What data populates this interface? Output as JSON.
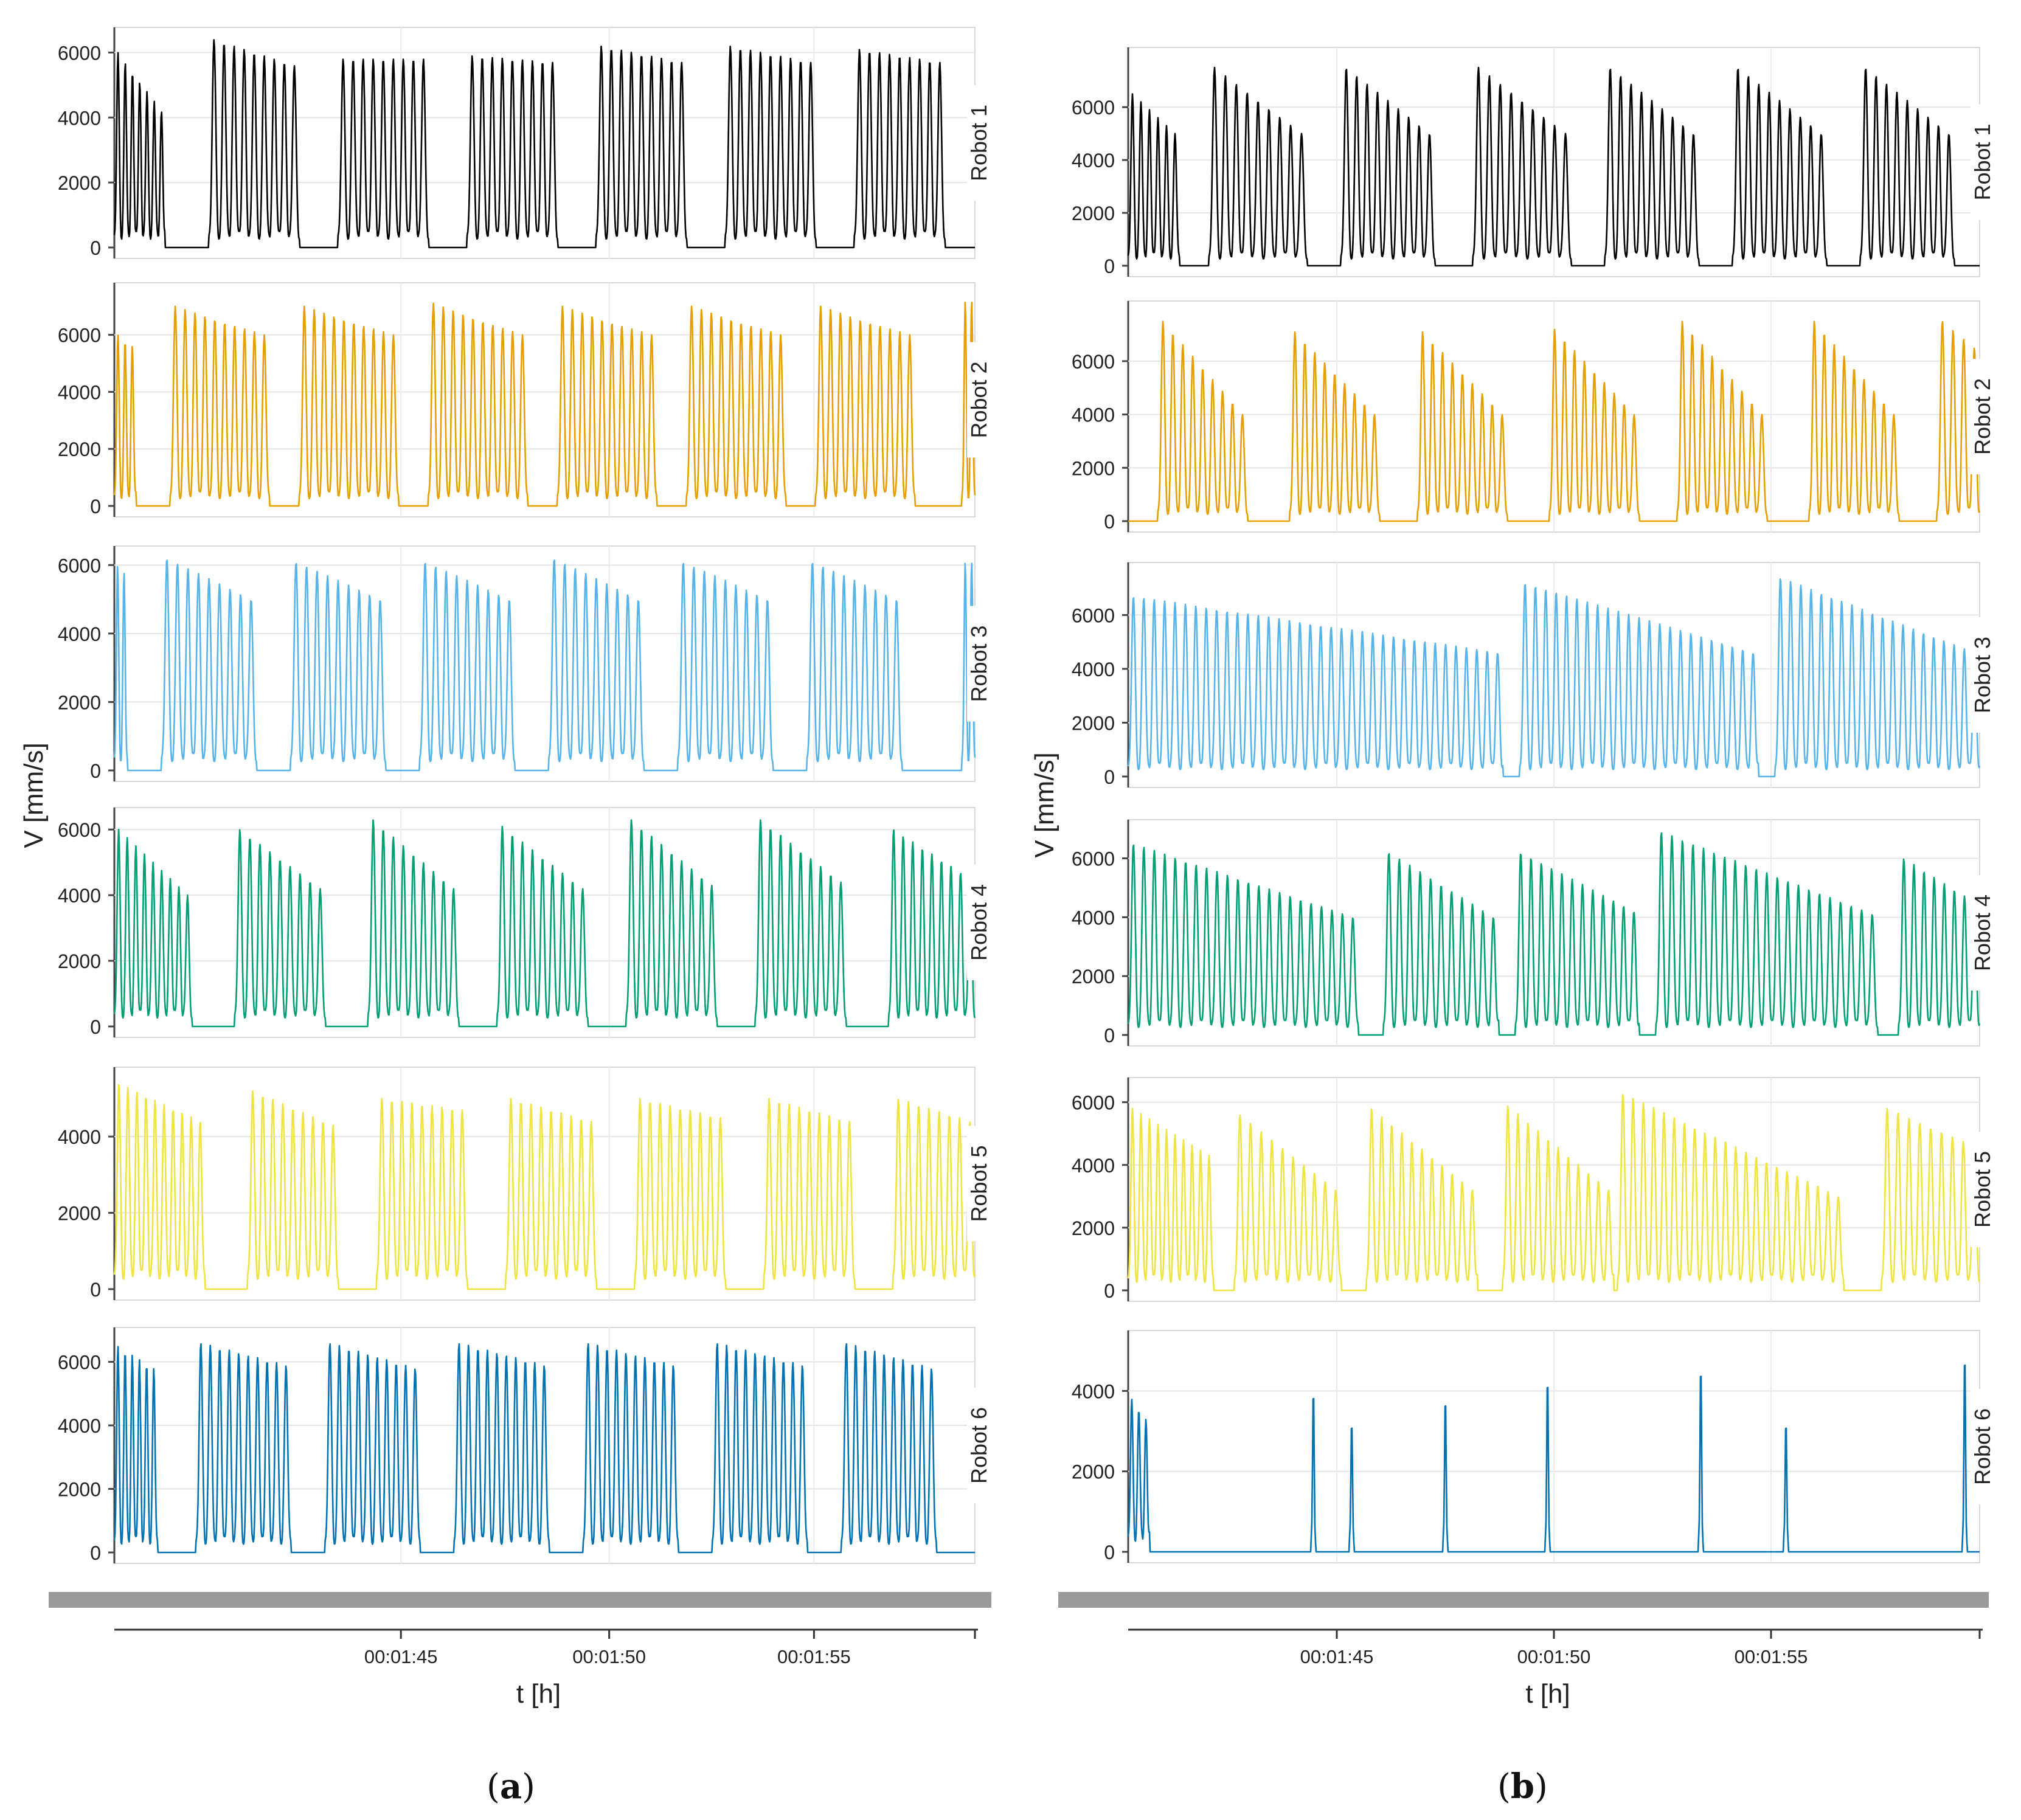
{
  "figure": {
    "panels": [
      {
        "label_prefix": "(",
        "letter": "a",
        "label_suffix": ")"
      },
      {
        "label_prefix": "(",
        "letter": "b",
        "label_suffix": ")"
      }
    ]
  },
  "chart_data": [
    {
      "panel": "a",
      "type": "line",
      "ylabel": "V [mm/s]",
      "xlabel": "t [h]",
      "x_ticks": [
        "00:01:45",
        "00:01:50",
        "00:01:55"
      ],
      "series": [
        {
          "name": "Robot 1",
          "color": "#000000",
          "ylim": [
            0,
            6400
          ],
          "y_ticks": [
            0,
            2000,
            4000,
            6000
          ],
          "bursts": [
            [
              0,
              0.059,
              6000,
              4200,
              7
            ],
            [
              0.11,
              0.215,
              6400,
              5600,
              9
            ],
            [
              0.26,
              0.365,
              5800,
              5800,
              9
            ],
            [
              0.41,
              0.515,
              5900,
              5700,
              9
            ],
            [
              0.56,
              0.665,
              6200,
              5700,
              9
            ],
            [
              0.71,
              0.815,
              6200,
              5700,
              9
            ],
            [
              0.86,
              0.965,
              6100,
              5700,
              9
            ]
          ]
        },
        {
          "name": "Robot 2",
          "color": "#e69f00",
          "ylim": [
            0,
            7400
          ],
          "y_ticks": [
            0,
            2000,
            4000,
            6000
          ],
          "bursts": [
            [
              0,
              0.025,
              6000,
              5600,
              3
            ],
            [
              0.065,
              0.18,
              7000,
              6000,
              10
            ],
            [
              0.215,
              0.33,
              7000,
              6000,
              10
            ],
            [
              0.365,
              0.48,
              7100,
              6000,
              10
            ],
            [
              0.515,
              0.63,
              7000,
              6000,
              10
            ],
            [
              0.665,
              0.78,
              7000,
              6000,
              10
            ],
            [
              0.815,
              0.93,
              7000,
              6000,
              10
            ],
            [
              0.985,
              1.0,
              7200,
              7200,
              2
            ]
          ]
        },
        {
          "name": "Robot 3",
          "color": "#56b4e9",
          "ylim": [
            0,
            6200
          ],
          "y_ticks": [
            0,
            2000,
            4000,
            6000
          ],
          "bursts": [
            [
              0,
              0.015,
              6000,
              5800,
              2
            ],
            [
              0.055,
              0.165,
              6200,
              5000,
              9
            ],
            [
              0.205,
              0.315,
              6100,
              5000,
              9
            ],
            [
              0.355,
              0.465,
              6100,
              5000,
              9
            ],
            [
              0.505,
              0.615,
              6200,
              5000,
              9
            ],
            [
              0.655,
              0.765,
              6100,
              5000,
              9
            ],
            [
              0.805,
              0.915,
              6100,
              5000,
              9
            ],
            [
              0.985,
              1.0,
              6100,
              6100,
              2
            ]
          ]
        },
        {
          "name": "Robot 4",
          "color": "#009e73",
          "ylim": [
            0,
            6300
          ],
          "y_ticks": [
            0,
            2000,
            4000,
            6000
          ],
          "bursts": [
            [
              0,
              0.09,
              6000,
              4000,
              9
            ],
            [
              0.14,
              0.245,
              6000,
              4200,
              9
            ],
            [
              0.295,
              0.4,
              6300,
              4200,
              9
            ],
            [
              0.445,
              0.55,
              6100,
              4200,
              9
            ],
            [
              0.595,
              0.7,
              6300,
              4300,
              9
            ],
            [
              0.745,
              0.85,
              6300,
              4400,
              9
            ],
            [
              0.9,
              1.0,
              6000,
              4500,
              9
            ]
          ]
        },
        {
          "name": "Robot 5",
          "color": "#f0e442",
          "ylim": [
            0,
            5500
          ],
          "y_ticks": [
            0,
            2000,
            4000
          ],
          "bursts": [
            [
              0,
              0.105,
              5400,
              4400,
              10
            ],
            [
              0.155,
              0.26,
              5200,
              4300,
              9
            ],
            [
              0.305,
              0.41,
              5000,
              4700,
              9
            ],
            [
              0.455,
              0.56,
              5000,
              4400,
              9
            ],
            [
              0.605,
              0.71,
              5000,
              4500,
              9
            ],
            [
              0.755,
              0.86,
              5000,
              4400,
              9
            ],
            [
              0.905,
              1.0,
              5000,
              4400,
              8
            ]
          ]
        },
        {
          "name": "Robot 6",
          "color": "#0072b2",
          "ylim": [
            0,
            6700
          ],
          "y_ticks": [
            0,
            2000,
            4000,
            6000
          ],
          "bursts": [
            [
              0,
              0.05,
              6500,
              5800,
              6
            ],
            [
              0.095,
              0.205,
              6600,
              5900,
              10
            ],
            [
              0.245,
              0.355,
              6600,
              5800,
              10
            ],
            [
              0.395,
              0.505,
              6600,
              5900,
              10
            ],
            [
              0.545,
              0.655,
              6600,
              5900,
              10
            ],
            [
              0.695,
              0.805,
              6600,
              5900,
              10
            ],
            [
              0.845,
              0.955,
              6600,
              5800,
              10
            ]
          ]
        }
      ]
    },
    {
      "panel": "b",
      "type": "line",
      "ylabel": "V [mm/s]",
      "xlabel": "t [h]",
      "x_ticks": [
        "00:01:45",
        "00:01:50",
        "00:01:55"
      ],
      "series": [
        {
          "name": "Robot 1",
          "color": "#000000",
          "ylim": [
            0,
            7800
          ],
          "y_ticks": [
            0,
            2000,
            4000,
            6000
          ],
          "bursts": [
            [
              0,
              0.06,
              6500,
              5000,
              6
            ],
            [
              0.095,
              0.21,
              7500,
              5000,
              9
            ],
            [
              0.25,
              0.36,
              7500,
              5000,
              9
            ],
            [
              0.405,
              0.52,
              7500,
              5000,
              9
            ],
            [
              0.56,
              0.67,
              7500,
              5000,
              9
            ],
            [
              0.71,
              0.82,
              7500,
              5000,
              9
            ],
            [
              0.86,
              0.97,
              7500,
              5000,
              9
            ]
          ]
        },
        {
          "name": "Robot 2",
          "color": "#e69f00",
          "ylim": [
            0,
            7800
          ],
          "y_ticks": [
            0,
            2000,
            4000,
            6000
          ],
          "bursts": [
            [
              0.035,
              0.14,
              7500,
              4000,
              9
            ],
            [
              0.19,
              0.295,
              7100,
              4000,
              9
            ],
            [
              0.34,
              0.445,
              7100,
              4000,
              9
            ],
            [
              0.495,
              0.6,
              7200,
              4000,
              9
            ],
            [
              0.645,
              0.75,
              7500,
              4000,
              9
            ],
            [
              0.8,
              0.905,
              7500,
              4000,
              9
            ],
            [
              0.95,
              1.0,
              7500,
              6500,
              4
            ]
          ]
        },
        {
          "name": "Robot 3",
          "color": "#56b4e9",
          "ylim": [
            0,
            7500
          ],
          "y_ticks": [
            0,
            2000,
            4000,
            6000
          ],
          "bursts": [
            [
              0,
              0.44,
              6700,
              4600,
              36
            ],
            [
              0.46,
              0.74,
              7200,
              4600,
              23
            ],
            [
              0.76,
              1.0,
              7400,
              4600,
              20
            ]
          ]
        },
        {
          "name": "Robot 4",
          "color": "#009e73",
          "ylim": [
            0,
            6900
          ],
          "y_ticks": [
            0,
            2000,
            4000,
            6000
          ],
          "bursts": [
            [
              0,
              0.27,
              6500,
              4000,
              22
            ],
            [
              0.3,
              0.435,
              6200,
              4000,
              11
            ],
            [
              0.455,
              0.6,
              6200,
              4200,
              12
            ],
            [
              0.62,
              0.88,
              6900,
              4100,
              21
            ],
            [
              0.905,
              1.0,
              6000,
              4500,
              8
            ]
          ]
        },
        {
          "name": "Robot 5",
          "color": "#f0e442",
          "ylim": [
            0,
            6400
          ],
          "y_ticks": [
            0,
            2000,
            4000,
            6000
          ],
          "bursts": [
            [
              0,
              0.1,
              5800,
              4300,
              10
            ],
            [
              0.125,
              0.25,
              5600,
              3200,
              10
            ],
            [
              0.28,
              0.41,
              5800,
              3200,
              11
            ],
            [
              0.44,
              0.57,
              5900,
              3200,
              11
            ],
            [
              0.575,
              0.84,
              6300,
              3000,
              22
            ],
            [
              0.885,
              1.0,
              5800,
              4600,
              9
            ]
          ]
        },
        {
          "name": "Robot 6",
          "color": "#0072b2",
          "ylim": [
            0,
            5200
          ],
          "y_ticks": [
            0,
            2000,
            4000
          ],
          "bursts": [
            [
              0,
              0.025,
              3800,
              3300,
              3
            ],
            [
              0.215,
              0.22,
              4100,
              4100,
              1
            ],
            [
              0.26,
              0.265,
              3300,
              3300,
              1
            ],
            [
              0.37,
              0.375,
              3900,
              3900,
              1
            ],
            [
              0.49,
              0.495,
              4400,
              4400,
              1
            ],
            [
              0.67,
              0.675,
              4700,
              4700,
              1
            ],
            [
              0.77,
              0.775,
              3300,
              3300,
              1
            ],
            [
              0.98,
              0.985,
              5000,
              5000,
              1
            ]
          ]
        }
      ]
    }
  ]
}
